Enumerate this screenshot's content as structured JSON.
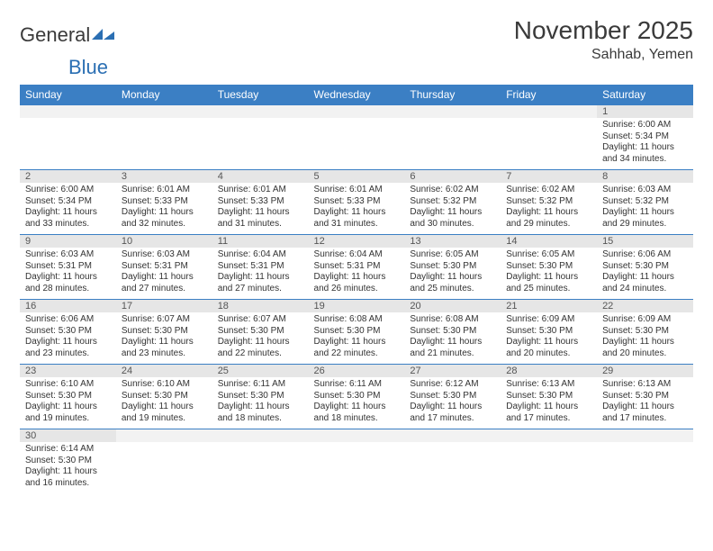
{
  "logo": {
    "text1": "General",
    "text2": "Blue"
  },
  "header": {
    "title": "November 2025",
    "location": "Sahhab, Yemen"
  },
  "colors": {
    "header_bg": "#3b7fc4",
    "header_text": "#ffffff",
    "daynum_bg": "#e6e6e6",
    "border": "#3b7fc4"
  },
  "daysOfWeek": [
    "Sunday",
    "Monday",
    "Tuesday",
    "Wednesday",
    "Thursday",
    "Friday",
    "Saturday"
  ],
  "weeks": [
    [
      {
        "n": "",
        "sr": "",
        "ss": "",
        "dl": ""
      },
      {
        "n": "",
        "sr": "",
        "ss": "",
        "dl": ""
      },
      {
        "n": "",
        "sr": "",
        "ss": "",
        "dl": ""
      },
      {
        "n": "",
        "sr": "",
        "ss": "",
        "dl": ""
      },
      {
        "n": "",
        "sr": "",
        "ss": "",
        "dl": ""
      },
      {
        "n": "",
        "sr": "",
        "ss": "",
        "dl": ""
      },
      {
        "n": "1",
        "sr": "Sunrise: 6:00 AM",
        "ss": "Sunset: 5:34 PM",
        "dl": "Daylight: 11 hours and 34 minutes."
      }
    ],
    [
      {
        "n": "2",
        "sr": "Sunrise: 6:00 AM",
        "ss": "Sunset: 5:34 PM",
        "dl": "Daylight: 11 hours and 33 minutes."
      },
      {
        "n": "3",
        "sr": "Sunrise: 6:01 AM",
        "ss": "Sunset: 5:33 PM",
        "dl": "Daylight: 11 hours and 32 minutes."
      },
      {
        "n": "4",
        "sr": "Sunrise: 6:01 AM",
        "ss": "Sunset: 5:33 PM",
        "dl": "Daylight: 11 hours and 31 minutes."
      },
      {
        "n": "5",
        "sr": "Sunrise: 6:01 AM",
        "ss": "Sunset: 5:33 PM",
        "dl": "Daylight: 11 hours and 31 minutes."
      },
      {
        "n": "6",
        "sr": "Sunrise: 6:02 AM",
        "ss": "Sunset: 5:32 PM",
        "dl": "Daylight: 11 hours and 30 minutes."
      },
      {
        "n": "7",
        "sr": "Sunrise: 6:02 AM",
        "ss": "Sunset: 5:32 PM",
        "dl": "Daylight: 11 hours and 29 minutes."
      },
      {
        "n": "8",
        "sr": "Sunrise: 6:03 AM",
        "ss": "Sunset: 5:32 PM",
        "dl": "Daylight: 11 hours and 29 minutes."
      }
    ],
    [
      {
        "n": "9",
        "sr": "Sunrise: 6:03 AM",
        "ss": "Sunset: 5:31 PM",
        "dl": "Daylight: 11 hours and 28 minutes."
      },
      {
        "n": "10",
        "sr": "Sunrise: 6:03 AM",
        "ss": "Sunset: 5:31 PM",
        "dl": "Daylight: 11 hours and 27 minutes."
      },
      {
        "n": "11",
        "sr": "Sunrise: 6:04 AM",
        "ss": "Sunset: 5:31 PM",
        "dl": "Daylight: 11 hours and 27 minutes."
      },
      {
        "n": "12",
        "sr": "Sunrise: 6:04 AM",
        "ss": "Sunset: 5:31 PM",
        "dl": "Daylight: 11 hours and 26 minutes."
      },
      {
        "n": "13",
        "sr": "Sunrise: 6:05 AM",
        "ss": "Sunset: 5:30 PM",
        "dl": "Daylight: 11 hours and 25 minutes."
      },
      {
        "n": "14",
        "sr": "Sunrise: 6:05 AM",
        "ss": "Sunset: 5:30 PM",
        "dl": "Daylight: 11 hours and 25 minutes."
      },
      {
        "n": "15",
        "sr": "Sunrise: 6:06 AM",
        "ss": "Sunset: 5:30 PM",
        "dl": "Daylight: 11 hours and 24 minutes."
      }
    ],
    [
      {
        "n": "16",
        "sr": "Sunrise: 6:06 AM",
        "ss": "Sunset: 5:30 PM",
        "dl": "Daylight: 11 hours and 23 minutes."
      },
      {
        "n": "17",
        "sr": "Sunrise: 6:07 AM",
        "ss": "Sunset: 5:30 PM",
        "dl": "Daylight: 11 hours and 23 minutes."
      },
      {
        "n": "18",
        "sr": "Sunrise: 6:07 AM",
        "ss": "Sunset: 5:30 PM",
        "dl": "Daylight: 11 hours and 22 minutes."
      },
      {
        "n": "19",
        "sr": "Sunrise: 6:08 AM",
        "ss": "Sunset: 5:30 PM",
        "dl": "Daylight: 11 hours and 22 minutes."
      },
      {
        "n": "20",
        "sr": "Sunrise: 6:08 AM",
        "ss": "Sunset: 5:30 PM",
        "dl": "Daylight: 11 hours and 21 minutes."
      },
      {
        "n": "21",
        "sr": "Sunrise: 6:09 AM",
        "ss": "Sunset: 5:30 PM",
        "dl": "Daylight: 11 hours and 20 minutes."
      },
      {
        "n": "22",
        "sr": "Sunrise: 6:09 AM",
        "ss": "Sunset: 5:30 PM",
        "dl": "Daylight: 11 hours and 20 minutes."
      }
    ],
    [
      {
        "n": "23",
        "sr": "Sunrise: 6:10 AM",
        "ss": "Sunset: 5:30 PM",
        "dl": "Daylight: 11 hours and 19 minutes."
      },
      {
        "n": "24",
        "sr": "Sunrise: 6:10 AM",
        "ss": "Sunset: 5:30 PM",
        "dl": "Daylight: 11 hours and 19 minutes."
      },
      {
        "n": "25",
        "sr": "Sunrise: 6:11 AM",
        "ss": "Sunset: 5:30 PM",
        "dl": "Daylight: 11 hours and 18 minutes."
      },
      {
        "n": "26",
        "sr": "Sunrise: 6:11 AM",
        "ss": "Sunset: 5:30 PM",
        "dl": "Daylight: 11 hours and 18 minutes."
      },
      {
        "n": "27",
        "sr": "Sunrise: 6:12 AM",
        "ss": "Sunset: 5:30 PM",
        "dl": "Daylight: 11 hours and 17 minutes."
      },
      {
        "n": "28",
        "sr": "Sunrise: 6:13 AM",
        "ss": "Sunset: 5:30 PM",
        "dl": "Daylight: 11 hours and 17 minutes."
      },
      {
        "n": "29",
        "sr": "Sunrise: 6:13 AM",
        "ss": "Sunset: 5:30 PM",
        "dl": "Daylight: 11 hours and 17 minutes."
      }
    ],
    [
      {
        "n": "30",
        "sr": "Sunrise: 6:14 AM",
        "ss": "Sunset: 5:30 PM",
        "dl": "Daylight: 11 hours and 16 minutes."
      },
      {
        "n": "",
        "sr": "",
        "ss": "",
        "dl": ""
      },
      {
        "n": "",
        "sr": "",
        "ss": "",
        "dl": ""
      },
      {
        "n": "",
        "sr": "",
        "ss": "",
        "dl": ""
      },
      {
        "n": "",
        "sr": "",
        "ss": "",
        "dl": ""
      },
      {
        "n": "",
        "sr": "",
        "ss": "",
        "dl": ""
      },
      {
        "n": "",
        "sr": "",
        "ss": "",
        "dl": ""
      }
    ]
  ]
}
